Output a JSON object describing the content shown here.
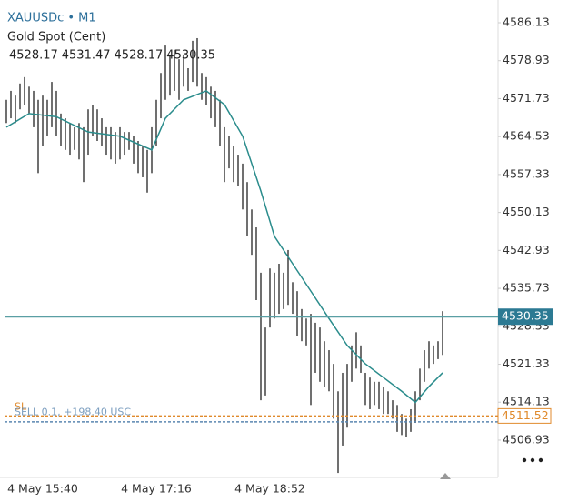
{
  "chart_data": {
    "type": "ohlc",
    "symbol": "XAUUSDc • M1",
    "instrument": "Gold Spot (Cent)",
    "ohlc": [
      4528.17,
      4531.47,
      4528.17,
      4530.35
    ],
    "categories": [
      null,
      null,
      null,
      null,
      null,
      null,
      null,
      null,
      "4 May 15:40",
      null,
      null,
      null,
      null,
      null,
      null,
      null,
      null,
      null,
      null,
      null,
      null,
      null,
      null,
      null,
      null,
      null,
      null,
      null,
      null,
      null,
      null,
      null,
      null,
      "4 May 17:16",
      null,
      null,
      null,
      null,
      null,
      null,
      null,
      null,
      null,
      null,
      null,
      null,
      null,
      null,
      null,
      null,
      null,
      null,
      null,
      null,
      null,
      null,
      null,
      null,
      "4 May 18:52",
      null,
      null,
      null,
      null,
      null,
      null,
      null,
      null,
      null,
      null,
      null,
      null,
      null,
      null,
      null,
      null,
      null,
      null,
      null,
      null,
      null,
      null,
      null,
      null,
      null,
      null,
      null,
      null,
      null,
      null,
      null,
      null,
      null,
      null,
      null,
      null,
      null,
      null
    ],
    "high": [
      4571.5,
      4573.2,
      4572.3,
      4574.6,
      4575.8,
      4574.0,
      4573.2,
      4571.5,
      4572.3,
      4571.5,
      4574.9,
      4573.2,
      4568.9,
      4568.0,
      4567.1,
      4566.3,
      4567.1,
      4566.3,
      4569.7,
      4570.6,
      4569.7,
      4568.0,
      4566.3,
      4566.3,
      4565.4,
      4566.3,
      4565.4,
      4565.4,
      4564.6,
      4563.7,
      4562.8,
      4562.0,
      4566.3,
      4571.5,
      4576.6,
      4581.8,
      4580.1,
      4581.0,
      4579.2,
      4580.1,
      4577.5,
      4582.7,
      4583.2,
      4576.6,
      4575.8,
      4574.0,
      4573.2,
      4571.5,
      4566.3,
      4564.6,
      4562.8,
      4561.1,
      4559.4,
      4555.9,
      4550.7,
      4547.3,
      4538.7,
      4528.3,
      4539.5,
      4538.7,
      4540.4,
      4538.7,
      4543.0,
      4536.9,
      4535.2,
      4531.8,
      4530.0,
      4530.9,
      4529.2,
      4528.3,
      4525.7,
      4524.0,
      4521.4,
      4516.2,
      4519.7,
      4521.4,
      4524.9,
      4527.4,
      4524.9,
      4519.7,
      4518.8,
      4518.0,
      4518.0,
      4517.1,
      4516.2,
      4514.5,
      4513.6,
      4511.9,
      4511.0,
      4512.8,
      4516.2,
      4520.5,
      4524.0,
      4525.7,
      4524.9,
      4525.7,
      4531.4
    ],
    "low": [
      4567.1,
      4568.0,
      4567.1,
      4569.7,
      4570.6,
      4568.9,
      4566.3,
      4557.6,
      4562.8,
      4564.6,
      4566.3,
      4564.6,
      4562.8,
      4562.0,
      4561.1,
      4562.0,
      4560.2,
      4555.9,
      4561.1,
      4564.6,
      4563.7,
      4562.8,
      4561.1,
      4560.2,
      4559.4,
      4560.2,
      4561.1,
      4562.0,
      4559.4,
      4557.6,
      4556.8,
      4553.9,
      4557.6,
      4562.8,
      4568.0,
      4571.5,
      4572.3,
      4573.2,
      4571.5,
      4574.0,
      4573.2,
      4574.9,
      4574.0,
      4571.5,
      4570.6,
      4568.0,
      4566.3,
      4562.8,
      4555.9,
      4558.5,
      4555.9,
      4555.1,
      4550.7,
      4545.6,
      4542.1,
      4533.5,
      4514.5,
      4515.4,
      4528.3,
      4530.0,
      4530.9,
      4531.8,
      4532.6,
      4530.9,
      4526.6,
      4525.7,
      4524.9,
      4513.6,
      4519.7,
      4518.0,
      4517.1,
      4516.2,
      4511.0,
      4500.7,
      4505.9,
      4509.3,
      4518.0,
      4520.5,
      4519.7,
      4513.6,
      4512.8,
      4513.6,
      4512.8,
      4511.9,
      4511.9,
      4511.0,
      4508.5,
      4507.9,
      4507.6,
      4508.5,
      4510.2,
      4514.5,
      4518.0,
      4520.5,
      4521.4,
      4522.3,
      4523.1
    ],
    "color": "#222222",
    "ma": {
      "color": "#2a8c8c",
      "x": [
        0,
        5,
        11,
        18,
        25,
        32,
        35,
        39,
        44,
        48,
        52,
        56,
        59,
        63,
        67,
        71,
        75,
        79,
        83,
        87,
        90,
        93,
        96
      ],
      "values": [
        4566.3,
        4568.9,
        4568.3,
        4565.4,
        4564.6,
        4562.0,
        4568.0,
        4571.5,
        4573.2,
        4570.6,
        4564.6,
        4554.2,
        4545.6,
        4540.4,
        4535.2,
        4530.0,
        4524.9,
        4521.4,
        4518.8,
        4516.2,
        4514.1,
        4517.1,
        4519.7
      ]
    },
    "last_price": 4530.35,
    "last_price_color": "#2c7a93",
    "sl_label": "SL",
    "sl_level": 4511.52,
    "sl_color": "#e08a2c",
    "position_label": "SELL 0.1, +198.40 USC",
    "position_level": 4510.4,
    "position_color": "#5b86b0",
    "ylim": [
      4499.85,
      4589.58
    ],
    "yticks": [
      4586.13,
      4578.93,
      4571.73,
      4564.53,
      4557.33,
      4550.13,
      4542.93,
      4535.73,
      4528.53,
      4521.33,
      4514.13,
      4506.93
    ]
  }
}
